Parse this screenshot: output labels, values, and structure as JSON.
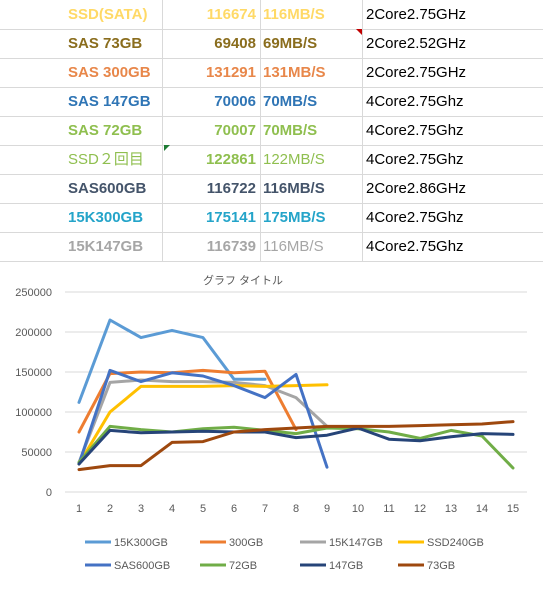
{
  "sheet": {
    "rows": [
      {
        "name": "SSD(SATA)",
        "value": "116674",
        "speed": "116MB/S",
        "cpu": "2Core2.75GHz",
        "color": "#ffd966",
        "speed_normal": false
      },
      {
        "name": "SAS 73GB",
        "value": "69408",
        "speed": "69MB/S",
        "cpu": "2Core2.52GHz",
        "color": "#8a6d1d",
        "speed_normal": false
      },
      {
        "name": "SAS 300GB",
        "value": "131291",
        "speed": "131MB/S",
        "cpu": "2Core2.75GHz",
        "color": "#e8874a",
        "speed_normal": false
      },
      {
        "name": "SAS 147GB",
        "value": "70006",
        "speed": "70MB/S",
        "cpu": "4Core2.75Ghz",
        "color": "#2f75b5",
        "speed_normal": false
      },
      {
        "name": "SAS 72GB",
        "value": "70007",
        "speed": "70MB/S",
        "cpu": "4Core2.75Ghz",
        "color": "#8fbf4f",
        "speed_normal": false
      },
      {
        "name": "SSD２回目",
        "value": "122861",
        "speed": "122MB/S",
        "cpu": "4Core2.75Ghz",
        "color": "#8fbf4f",
        "speed_normal": true
      },
      {
        "name": "SAS600GB",
        "value": "116722",
        "speed": "116MB/S",
        "cpu": "2Core2.86GHz",
        "color": "#44546a",
        "speed_normal": false
      },
      {
        "name": "15K300GB",
        "value": "175141",
        "speed": "175MB/S",
        "cpu": "4Core2.75Ghz",
        "color": "#24a4c9",
        "speed_normal": false
      },
      {
        "name": "15K147GB",
        "value": "116739",
        "speed": "116MB/S",
        "cpu": "4Core2.75Ghz",
        "color": "#a6a6a6",
        "speed_normal": true
      }
    ]
  },
  "chart_data": {
    "type": "line",
    "title": "グラフ タイトル",
    "ylim": [
      0,
      250000
    ],
    "yticks": [
      0,
      50000,
      100000,
      150000,
      200000,
      250000
    ],
    "x": [
      1,
      2,
      3,
      4,
      5,
      6,
      7,
      8,
      9,
      10,
      11,
      12,
      13,
      14,
      15
    ],
    "grid": true,
    "legend_position": "bottom",
    "series": [
      {
        "name": "15K300GB",
        "color": "#5b9bd5",
        "values": [
          112000,
          215000,
          193000,
          202000,
          193000,
          141000,
          141000,
          null,
          null,
          null,
          null,
          null,
          null,
          null,
          null
        ]
      },
      {
        "name": "300GB",
        "color": "#ed7d31",
        "values": [
          75000,
          148000,
          150000,
          149000,
          152000,
          149000,
          151000,
          78000,
          null,
          null,
          null,
          null,
          null,
          null,
          null
        ]
      },
      {
        "name": "15K147GB",
        "color": "#a5a5a5",
        "values": [
          37000,
          137000,
          140000,
          138000,
          138000,
          137000,
          133000,
          118000,
          82000,
          null,
          null,
          null,
          null,
          null,
          null
        ]
      },
      {
        "name": "SSD240GB",
        "color": "#ffc000",
        "values": [
          35000,
          100000,
          132000,
          132000,
          132000,
          133000,
          132000,
          133000,
          134000,
          null,
          null,
          null,
          null,
          null,
          null
        ]
      },
      {
        "name": "SAS600GB",
        "color": "#4472c4",
        "values": [
          35000,
          152000,
          138000,
          149000,
          145000,
          133000,
          118000,
          147000,
          31000,
          null,
          null,
          null,
          null,
          null,
          null
        ]
      },
      {
        "name": "72GB",
        "color": "#70ad47",
        "values": [
          37000,
          82000,
          78000,
          75000,
          79000,
          81000,
          77000,
          73000,
          80000,
          79000,
          75000,
          67000,
          77000,
          70000,
          30000
        ]
      },
      {
        "name": "147GB",
        "color": "#264478",
        "values": [
          35000,
          77000,
          74000,
          75000,
          76000,
          75000,
          75000,
          68000,
          71000,
          80000,
          66000,
          64000,
          69000,
          73000,
          72000
        ]
      },
      {
        "name": "73GB",
        "color": "#9e480e",
        "values": [
          28000,
          33000,
          33000,
          62000,
          63000,
          75000,
          78000,
          80000,
          82000,
          82000,
          82000,
          83000,
          84000,
          85000,
          88000
        ]
      }
    ]
  }
}
